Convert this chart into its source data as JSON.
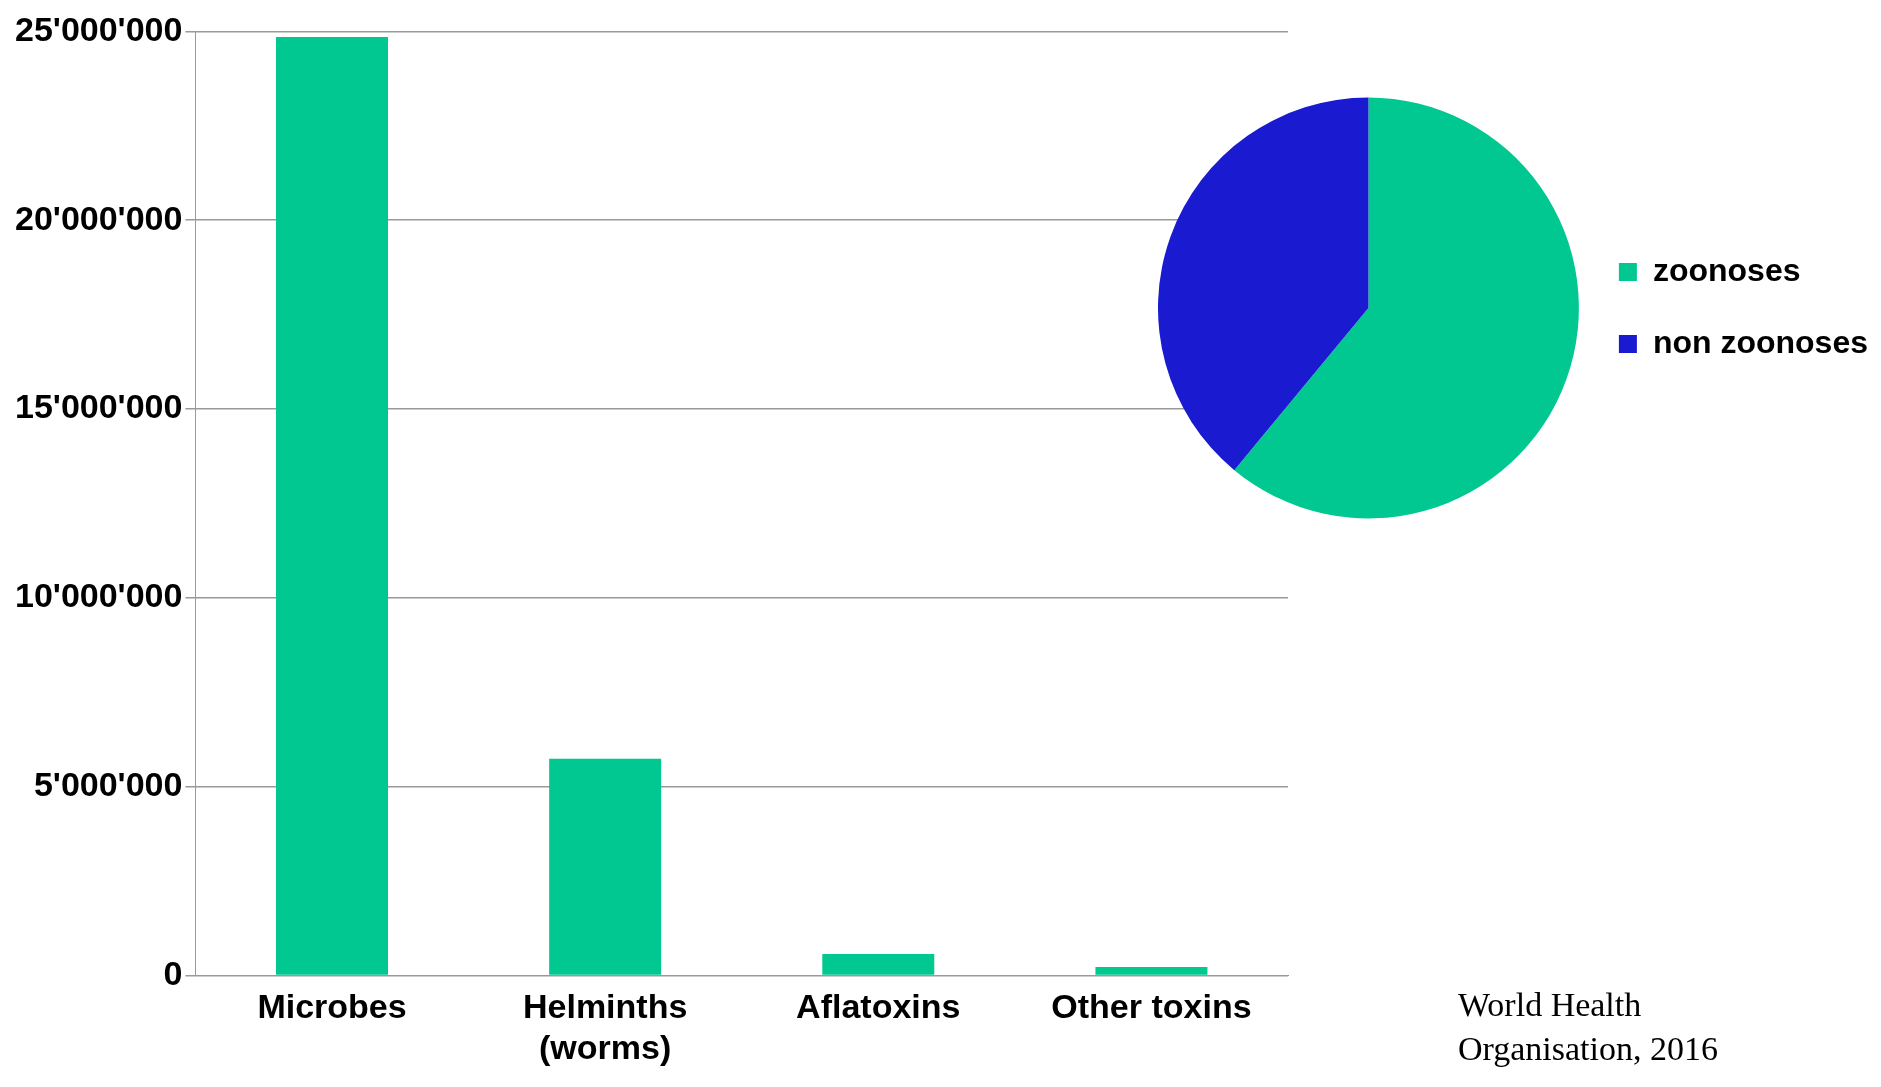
{
  "chart_data": [
    {
      "type": "bar",
      "categories": [
        "Microbes",
        "Helminths (worms)",
        "Aflatoxins",
        "Other toxins"
      ],
      "values": [
        24850000,
        5740000,
        570000,
        220000
      ],
      "color": "#00c890",
      "ylim": [
        0,
        25000000
      ],
      "yticks": [
        {
          "value": 0,
          "label": "0"
        },
        {
          "value": 5000000,
          "label": "5'000'000"
        },
        {
          "value": 10000000,
          "label": "10'000'000"
        },
        {
          "value": 15000000,
          "label": "15'000'000"
        },
        {
          "value": 20000000,
          "label": "20'000'000"
        },
        {
          "value": 25000000,
          "label": "25'000'000"
        }
      ],
      "grid": "y",
      "legend": false,
      "annotations": [
        "World Health Organisation, 2016"
      ]
    },
    {
      "type": "pie",
      "categories": [
        "zoonoses",
        "non zoonoses"
      ],
      "values": [
        61,
        39
      ],
      "colors": [
        "#00c890",
        "#1a1ad0"
      ],
      "legend": "right"
    }
  ]
}
